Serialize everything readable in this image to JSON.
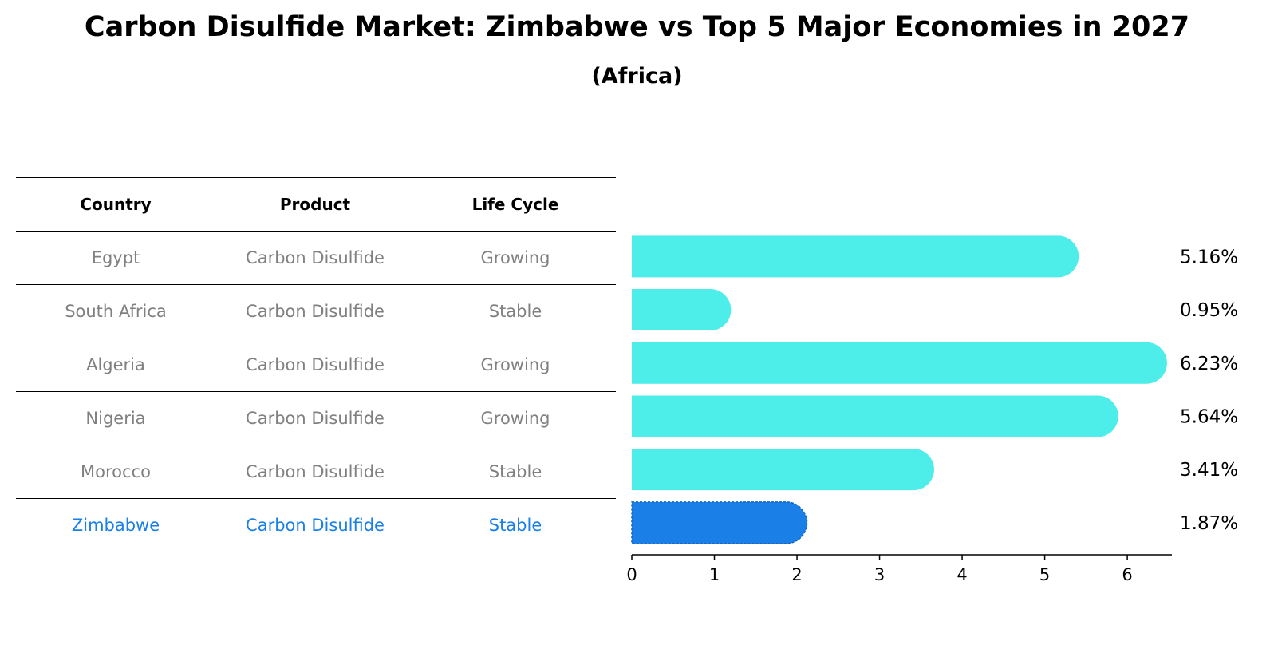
{
  "title": "Carbon Disulfide Market: Zimbabwe vs Top 5 Major Economies in 2027",
  "subtitle": "(Africa)",
  "table": {
    "headers": [
      "Country",
      "Product",
      "Life Cycle"
    ],
    "rows": [
      [
        "Egypt",
        "Carbon Disulfide",
        "Growing"
      ],
      [
        "South Africa",
        "Carbon Disulfide",
        "Stable"
      ],
      [
        "Algeria",
        "Carbon Disulfide",
        "Growing"
      ],
      [
        "Nigeria",
        "Carbon Disulfide",
        "Growing"
      ],
      [
        "Morocco",
        "Carbon Disulfide",
        "Stable"
      ],
      [
        "Zimbabwe",
        "Carbon Disulfide",
        "Stable"
      ]
    ]
  },
  "chart_data": {
    "type": "bar",
    "orientation": "horizontal",
    "categories": [
      "Egypt",
      "South Africa",
      "Algeria",
      "Nigeria",
      "Morocco",
      "Zimbabwe"
    ],
    "values": [
      5.16,
      0.95,
      6.23,
      5.64,
      3.41,
      1.87
    ],
    "value_labels": [
      "5.16%",
      "0.95%",
      "6.23%",
      "5.64%",
      "3.41%",
      "1.87%"
    ],
    "xlim": [
      0,
      6.54
    ],
    "xticks": [
      0,
      1,
      2,
      3,
      4,
      5,
      6
    ],
    "highlight": "Zimbabwe",
    "colors": {
      "default": "#4deeea",
      "highlight": "#1a80e8"
    },
    "grid": false
  }
}
